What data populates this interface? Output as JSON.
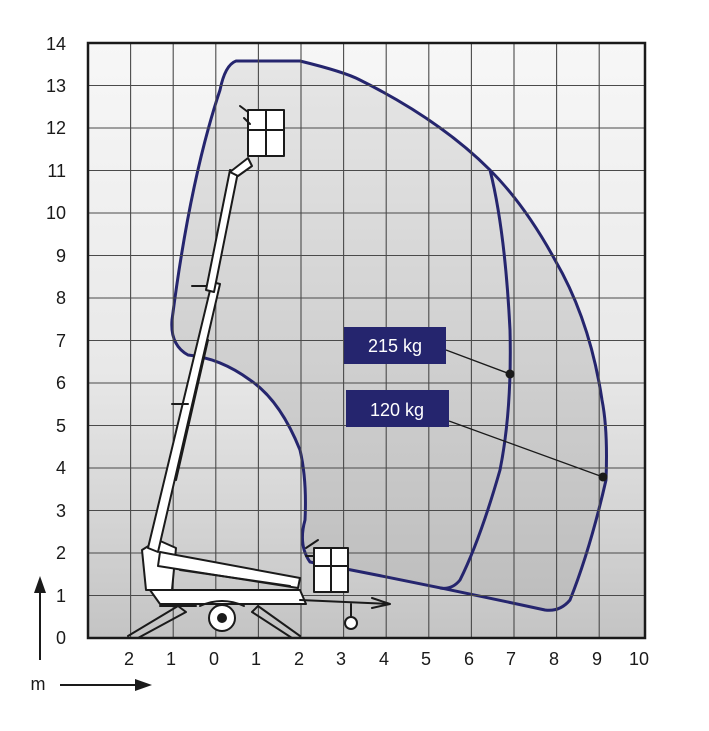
{
  "y_ticks": [
    "0",
    "1",
    "2",
    "3",
    "4",
    "5",
    "6",
    "7",
    "8",
    "9",
    "10",
    "11",
    "12",
    "13",
    "14"
  ],
  "x_ticks": [
    "2",
    "1",
    "0",
    "1",
    "2",
    "3",
    "4",
    "5",
    "6",
    "7",
    "8",
    "9",
    "10"
  ],
  "unit_label": "m",
  "loads": [
    {
      "label": "215 kg",
      "point_x": 6.9,
      "point_y": 6.2
    },
    {
      "label": "120 kg",
      "point_x": 9.1,
      "point_y": 3.8
    }
  ],
  "colors": {
    "envelope": "#25256e",
    "label_bg": "#25256e",
    "label_text": "#ffffff",
    "grid": "#4a4a4a",
    "machine": "#1a1a1a"
  }
}
